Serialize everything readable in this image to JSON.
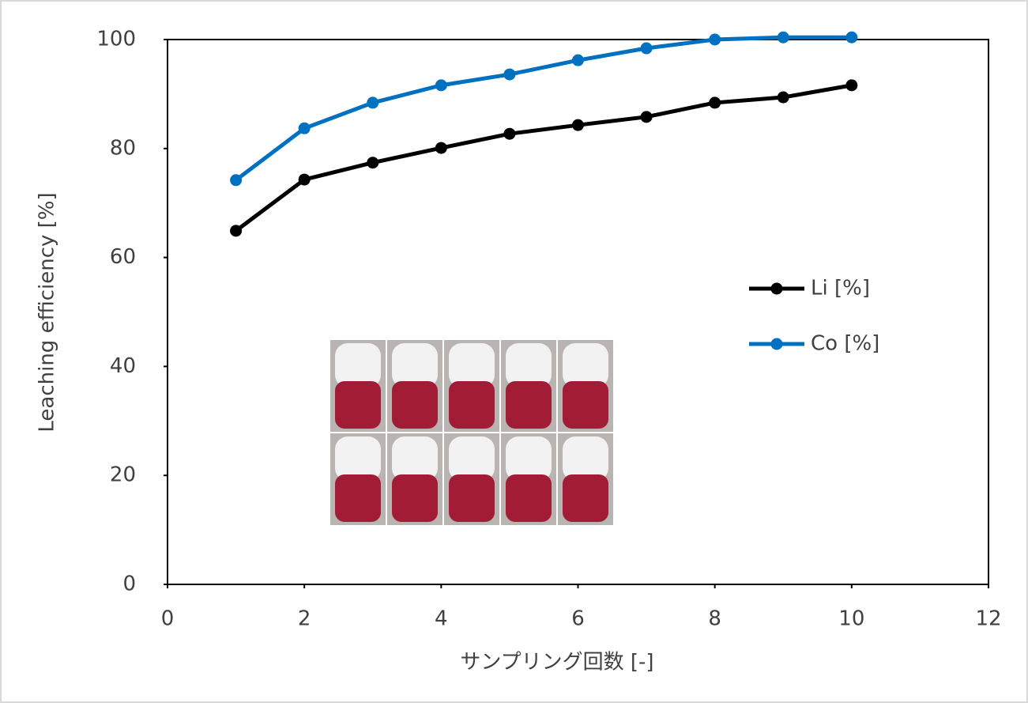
{
  "chart_data": {
    "type": "line",
    "x": [
      1,
      2,
      3,
      4,
      5,
      6,
      7,
      8,
      9,
      10
    ],
    "series": [
      {
        "name": "Li [%]",
        "color": "#000000",
        "values": [
          64.9,
          74.3,
          77.4,
          80.1,
          82.7,
          84.3,
          85.8,
          88.4,
          89.4,
          91.6
        ]
      },
      {
        "name": "Co [%]",
        "color": "#0070c0",
        "values": [
          74.2,
          83.7,
          88.4,
          91.6,
          93.6,
          96.2,
          98.4,
          100,
          100.4,
          100.4
        ]
      }
    ],
    "xlabel": "サンプリング回数 [-]",
    "ylabel": "Leaching efficiency [%]",
    "xlim": [
      0,
      12
    ],
    "xticks": [
      0,
      2,
      4,
      6,
      8,
      10,
      12
    ],
    "ylim": [
      0,
      100
    ],
    "yticks": [
      0,
      20,
      40,
      60,
      80,
      100
    ],
    "grid": false,
    "legend": "right"
  }
}
